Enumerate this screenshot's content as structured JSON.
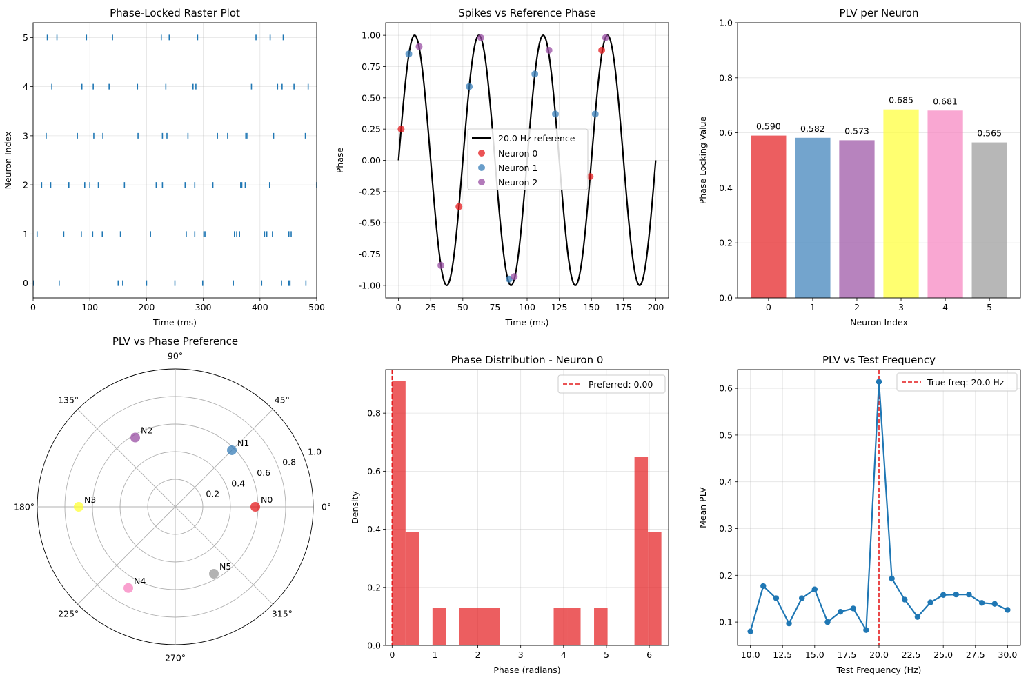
{
  "chart_data": [
    {
      "id": "raster",
      "type": "scatter",
      "title": "Phase-Locked Raster Plot",
      "xlabel": "Time (ms)",
      "ylabel": "Neuron Index",
      "xlim": [
        0,
        500
      ],
      "ylim": [
        -0.3,
        5.3
      ],
      "xticks": [
        0,
        100,
        200,
        300,
        400,
        500
      ],
      "yticks": [
        0,
        1,
        2,
        3,
        4,
        5
      ],
      "grid": true,
      "marker": "|",
      "color": "#1f77b4",
      "series": [
        {
          "neuron": 0,
          "x": [
            1,
            46,
            150,
            158,
            200,
            250,
            299,
            353,
            403,
            438,
            451,
            453,
            481
          ]
        },
        {
          "neuron": 1,
          "x": [
            7,
            54,
            85,
            105,
            122,
            154,
            207,
            270,
            285,
            301,
            303,
            355,
            359,
            364,
            408,
            412,
            422,
            451,
            455
          ]
        },
        {
          "neuron": 2,
          "x": [
            15,
            31,
            63,
            91,
            100,
            115,
            161,
            217,
            228,
            268,
            285,
            317,
            366,
            368,
            374,
            417,
            500
          ]
        },
        {
          "neuron": 3,
          "x": [
            23,
            78,
            107,
            123,
            185,
            228,
            236,
            273,
            325,
            343,
            375,
            377,
            424,
            480
          ]
        },
        {
          "neuron": 4,
          "x": [
            33,
            86,
            106,
            134,
            184,
            234,
            282,
            287,
            385,
            431,
            439,
            460,
            485
          ]
        },
        {
          "neuron": 5,
          "x": [
            25,
            42,
            94,
            140,
            226,
            240,
            290,
            393,
            418,
            441
          ]
        }
      ]
    },
    {
      "id": "sine",
      "type": "line",
      "title": "Spikes vs Reference Phase",
      "xlabel": "Time (ms)",
      "ylabel": "Phase",
      "xlim": [
        -10,
        210
      ],
      "ylim": [
        -1.1,
        1.1
      ],
      "xticks": [
        0,
        25,
        50,
        75,
        100,
        125,
        150,
        175,
        200
      ],
      "yticks": [
        -1.0,
        -0.75,
        -0.5,
        -0.25,
        0.0,
        0.25,
        0.5,
        0.75,
        1.0
      ],
      "grid": true,
      "legend_position": "center-right",
      "reference": {
        "name": "20.0 Hz reference",
        "freq_hz": 20,
        "t_range": [
          0,
          200
        ],
        "color": "#000000"
      },
      "series": [
        {
          "name": "Neuron 0",
          "color": "#e41a1c",
          "x": [
            2,
            47,
            149,
            158
          ],
          "y": [
            0.25,
            -0.37,
            -0.13,
            0.88
          ]
        },
        {
          "name": "Neuron 1",
          "color": "#377eb8",
          "x": [
            8,
            55,
            86,
            106,
            122,
            153
          ],
          "y": [
            0.85,
            0.59,
            -0.95,
            0.69,
            0.37,
            0.37
          ]
        },
        {
          "name": "Neuron 2",
          "color": "#984ea3",
          "x": [
            16,
            33,
            64,
            90,
            117,
            161
          ],
          "y": [
            0.91,
            -0.84,
            0.98,
            -0.93,
            0.88,
            0.98
          ]
        }
      ]
    },
    {
      "id": "bars",
      "type": "bar",
      "title": "PLV per Neuron",
      "xlabel": "Neuron Index",
      "ylabel": "Phase Locking Value",
      "categories": [
        "0",
        "1",
        "2",
        "3",
        "4",
        "5"
      ],
      "values": [
        0.59,
        0.582,
        0.573,
        0.685,
        0.681,
        0.565
      ],
      "value_labels": [
        "0.590",
        "0.582",
        "0.573",
        "0.685",
        "0.681",
        "0.565"
      ],
      "colors": [
        "#e41a1c",
        "#377eb8",
        "#984ea3",
        "#ffff33",
        "#f781bf",
        "#999999"
      ],
      "ylim": [
        0,
        1.0
      ],
      "yticks": [
        0.0,
        0.2,
        0.4,
        0.6,
        0.8,
        1.0
      ],
      "grid": true
    },
    {
      "id": "polar",
      "type": "scatter",
      "title": "PLV vs Phase Preference",
      "rlim": [
        0,
        1.0
      ],
      "rticks": [
        "0.2",
        "0.4",
        "0.6",
        "0.8",
        "1.0"
      ],
      "angle_ticks": [
        "0°",
        "45°",
        "90°",
        "135°",
        "180°",
        "225°",
        "270°",
        "315°"
      ],
      "grid": true,
      "points": [
        {
          "label": "N0",
          "theta_deg": 0,
          "r": 0.58,
          "color": "#e41a1c"
        },
        {
          "label": "N1",
          "theta_deg": 45,
          "r": 0.58,
          "color": "#377eb8"
        },
        {
          "label": "N2",
          "theta_deg": 120,
          "r": 0.58,
          "color": "#984ea3"
        },
        {
          "label": "N3",
          "theta_deg": 180,
          "r": 0.7,
          "color": "#ffff33"
        },
        {
          "label": "N4",
          "theta_deg": 240,
          "r": 0.68,
          "color": "#f781bf"
        },
        {
          "label": "N5",
          "theta_deg": 300,
          "r": 0.56,
          "color": "#999999"
        }
      ]
    },
    {
      "id": "hist",
      "type": "bar",
      "title": "Phase Distribution - Neuron 0",
      "xlabel": "Phase (radians)",
      "ylabel": "Density",
      "xlim": [
        -0.15,
        6.45
      ],
      "ylim": [
        0,
        0.95
      ],
      "xticks": [
        0,
        1,
        2,
        3,
        4,
        5,
        6
      ],
      "yticks": [
        0.0,
        0.2,
        0.4,
        0.6,
        0.8
      ],
      "grid": true,
      "color": "#e41a1c",
      "bin_edges": [
        0,
        0.314,
        0.628,
        0.942,
        1.257,
        1.571,
        1.885,
        2.199,
        2.513,
        2.827,
        3.142,
        3.456,
        3.77,
        4.084,
        4.398,
        4.712,
        5.027,
        5.341,
        5.655,
        5.969,
        6.283
      ],
      "densities": [
        0.91,
        0.39,
        0,
        0.13,
        0,
        0.13,
        0.13,
        0.13,
        0,
        0,
        0,
        0,
        0.13,
        0.13,
        0,
        0.13,
        0,
        0,
        0.65,
        0.39
      ],
      "vline": {
        "x": 0.0,
        "label": "Preferred: 0.00",
        "color": "#e41a1c"
      },
      "legend_position": "top-right"
    },
    {
      "id": "freq",
      "type": "line",
      "title": "PLV vs Test Frequency",
      "xlabel": "Test Frequency (Hz)",
      "ylabel": "Mean PLV",
      "xlim": [
        9,
        31
      ],
      "ylim": [
        0.05,
        0.64
      ],
      "xticks": [
        "10.0",
        "12.5",
        "15.0",
        "17.5",
        "20.0",
        "22.5",
        "25.0",
        "27.5",
        "30.0"
      ],
      "yticks": [
        "0.1",
        "0.2",
        "0.3",
        "0.4",
        "0.5",
        "0.6"
      ],
      "grid": true,
      "color": "#1f77b4",
      "x": [
        10,
        11,
        12,
        13,
        14,
        15,
        16,
        17,
        18,
        19,
        20,
        21,
        22,
        23,
        24,
        25,
        26,
        27,
        28,
        29,
        30
      ],
      "y": [
        0.08,
        0.177,
        0.151,
        0.097,
        0.151,
        0.17,
        0.1,
        0.122,
        0.129,
        0.083,
        0.614,
        0.193,
        0.148,
        0.111,
        0.142,
        0.158,
        0.159,
        0.159,
        0.141,
        0.139,
        0.126
      ],
      "vline": {
        "x": 20,
        "label": "True freq: 20.0 Hz",
        "color": "#e41a1c"
      },
      "legend_position": "top-right"
    }
  ]
}
